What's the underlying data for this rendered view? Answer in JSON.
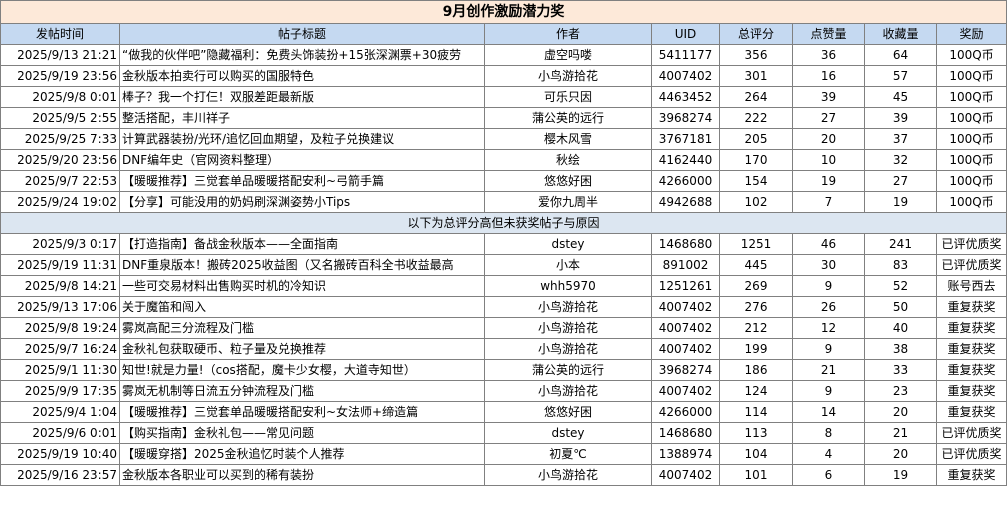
{
  "title": "9月创作激励潜力奖",
  "headers": [
    "发帖时间",
    "帖子标题",
    "作者",
    "UID",
    "总评分",
    "点赞量",
    "收藏量",
    "奖励"
  ],
  "winners": [
    {
      "time": "2025/9/13 21:21",
      "title": "“做我的伙伴吧”隐藏福利：免费头饰装扮+15张深渊票+30疲劳",
      "author": "虚空吗喽",
      "uid": "5411177",
      "score": "356",
      "likes": "36",
      "favs": "64",
      "reward": "100Q币"
    },
    {
      "time": "2025/9/19 23:56",
      "title": "金秋版本拍卖行可以购买的国服特色",
      "author": "小鸟游拾花",
      "uid": "4007402",
      "score": "301",
      "likes": "16",
      "favs": "57",
      "reward": "100Q币"
    },
    {
      "time": "2025/9/8 0:01",
      "title": "棒子？我一个打仨！双服差距最新版",
      "author": "可乐只因",
      "uid": "4463452",
      "score": "264",
      "likes": "39",
      "favs": "45",
      "reward": "100Q币"
    },
    {
      "time": "2025/9/5 2:55",
      "title": "整活搭配，丰川祥子",
      "author": "蒲公英的远行",
      "uid": "3968274",
      "score": "222",
      "likes": "27",
      "favs": "39",
      "reward": "100Q币"
    },
    {
      "time": "2025/9/25 7:33",
      "title": "计算武器装扮/光环/追忆回血期望，及粒子兑换建议",
      "author": "樱木风雪",
      "uid": "3767181",
      "score": "205",
      "likes": "20",
      "favs": "37",
      "reward": "100Q币"
    },
    {
      "time": "2025/9/20 23:56",
      "title": "DNF编年史（官网资料整理）",
      "author": "秋绘",
      "uid": "4162440",
      "score": "170",
      "likes": "10",
      "favs": "32",
      "reward": "100Q币"
    },
    {
      "time": "2025/9/7 22:53",
      "title": "【暖暖推荐】三觉套单品暖暖搭配安利~弓箭手篇",
      "author": "悠悠好困",
      "uid": "4266000",
      "score": "154",
      "likes": "19",
      "favs": "27",
      "reward": "100Q币"
    },
    {
      "time": "2025/9/24 19:02",
      "title": "【分享】可能没用的奶妈刷深渊姿势小Tips",
      "author": "爱你九周半",
      "uid": "4942688",
      "score": "102",
      "likes": "7",
      "favs": "19",
      "reward": "100Q币"
    }
  ],
  "section_label": "以下为总评分高但未获奖帖子与原因",
  "others": [
    {
      "time": "2025/9/3 0:17",
      "title": "【打造指南】备战金秋版本——全面指南",
      "author": "dstey",
      "uid": "1468680",
      "score": "1251",
      "likes": "46",
      "favs": "241",
      "reward": "已评优质奖"
    },
    {
      "time": "2025/9/19 11:31",
      "title": "DNF重泉版本！搬砖2025收益图（又名搬砖百科全书收益最高",
      "author": "小本",
      "uid": "891002",
      "score": "445",
      "likes": "30",
      "favs": "83",
      "reward": "已评优质奖"
    },
    {
      "time": "2025/9/8 14:21",
      "title": "一些可交易材料出售购买时机的冷知识",
      "author": "whh5970",
      "uid": "1251261",
      "score": "269",
      "likes": "9",
      "favs": "52",
      "reward": "账号西去"
    },
    {
      "time": "2025/9/13 17:06",
      "title": "关于魔笛和闯入",
      "author": "小鸟游拾花",
      "uid": "4007402",
      "score": "276",
      "likes": "26",
      "favs": "50",
      "reward": "重复获奖"
    },
    {
      "time": "2025/9/8 19:24",
      "title": "雾岚高配三分流程及门槛",
      "author": "小鸟游拾花",
      "uid": "4007402",
      "score": "212",
      "likes": "12",
      "favs": "40",
      "reward": "重复获奖"
    },
    {
      "time": "2025/9/7 16:24",
      "title": "金秋礼包获取硬币、粒子量及兑换推荐",
      "author": "小鸟游拾花",
      "uid": "4007402",
      "score": "199",
      "likes": "9",
      "favs": "38",
      "reward": "重复获奖"
    },
    {
      "time": "2025/9/1 11:30",
      "title": "知世!就是力量!（cos搭配，魔卡少女樱，大道寺知世）",
      "author": "蒲公英的远行",
      "uid": "3968274",
      "score": "186",
      "likes": "21",
      "favs": "33",
      "reward": "重复获奖"
    },
    {
      "time": "2025/9/9 17:35",
      "title": "雾岚无机制等日流五分钟流程及门槛",
      "author": "小鸟游拾花",
      "uid": "4007402",
      "score": "124",
      "likes": "9",
      "favs": "23",
      "reward": "重复获奖"
    },
    {
      "time": "2025/9/4 1:04",
      "title": "【暖暖推荐】三觉套单品暖暖搭配安利~女法师+缔造篇",
      "author": "悠悠好困",
      "uid": "4266000",
      "score": "114",
      "likes": "14",
      "favs": "20",
      "reward": "重复获奖"
    },
    {
      "time": "2025/9/6 0:01",
      "title": "【购买指南】金秋礼包——常见问题",
      "author": "dstey",
      "uid": "1468680",
      "score": "113",
      "likes": "8",
      "favs": "21",
      "reward": "已评优质奖"
    },
    {
      "time": "2025/9/19 10:40",
      "title": "【暖暖穿搭】2025金秋追忆时装个人推荐",
      "author": "初夏℃",
      "uid": "1388974",
      "score": "104",
      "likes": "4",
      "favs": "20",
      "reward": "已评优质奖"
    },
    {
      "time": "2025/9/16 23:57",
      "title": "金秋版本各职业可以买到的稀有装扮",
      "author": "小鸟游拾花",
      "uid": "4007402",
      "score": "101",
      "likes": "6",
      "favs": "19",
      "reward": "重复获奖"
    }
  ]
}
